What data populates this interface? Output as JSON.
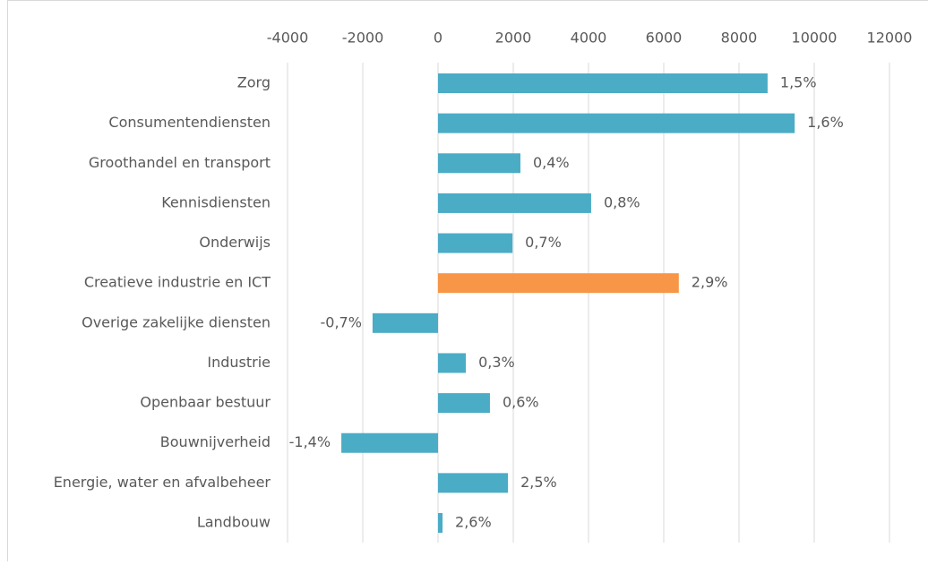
{
  "chart_data": {
    "type": "barh",
    "categories": [
      "Zorg",
      "Consumentendiensten",
      "Groothandel en transport",
      "Kennisdiensten",
      "Onderwijs",
      "Creatieve industrie en ICT",
      "Overige zakelijke diensten",
      "Industrie",
      "Openbaar bestuur",
      "Bouwnijverheid",
      "Energie, water en afvalbeheer",
      "Landbouw"
    ],
    "values": [
      8760,
      9480,
      2190,
      4070,
      1980,
      6400,
      -1740,
      740,
      1380,
      -2570,
      1860,
      120
    ],
    "data_labels": [
      "1,5%",
      "1,6%",
      "0,4%",
      "0,8%",
      "0,7%",
      "2,9%",
      "-0,7%",
      "0,3%",
      "0,6%",
      "-1,4%",
      "2,5%",
      "2,6%"
    ],
    "colors": [
      "#4bacc6",
      "#4bacc6",
      "#4bacc6",
      "#4bacc6",
      "#4bacc6",
      "#f79646",
      "#4bacc6",
      "#4bacc6",
      "#4bacc6",
      "#4bacc6",
      "#4bacc6",
      "#4bacc6"
    ],
    "xlim": [
      -4000,
      12000
    ],
    "xticks": [
      -4000,
      -2000,
      0,
      2000,
      4000,
      6000,
      8000,
      10000,
      12000
    ],
    "grid": true
  }
}
